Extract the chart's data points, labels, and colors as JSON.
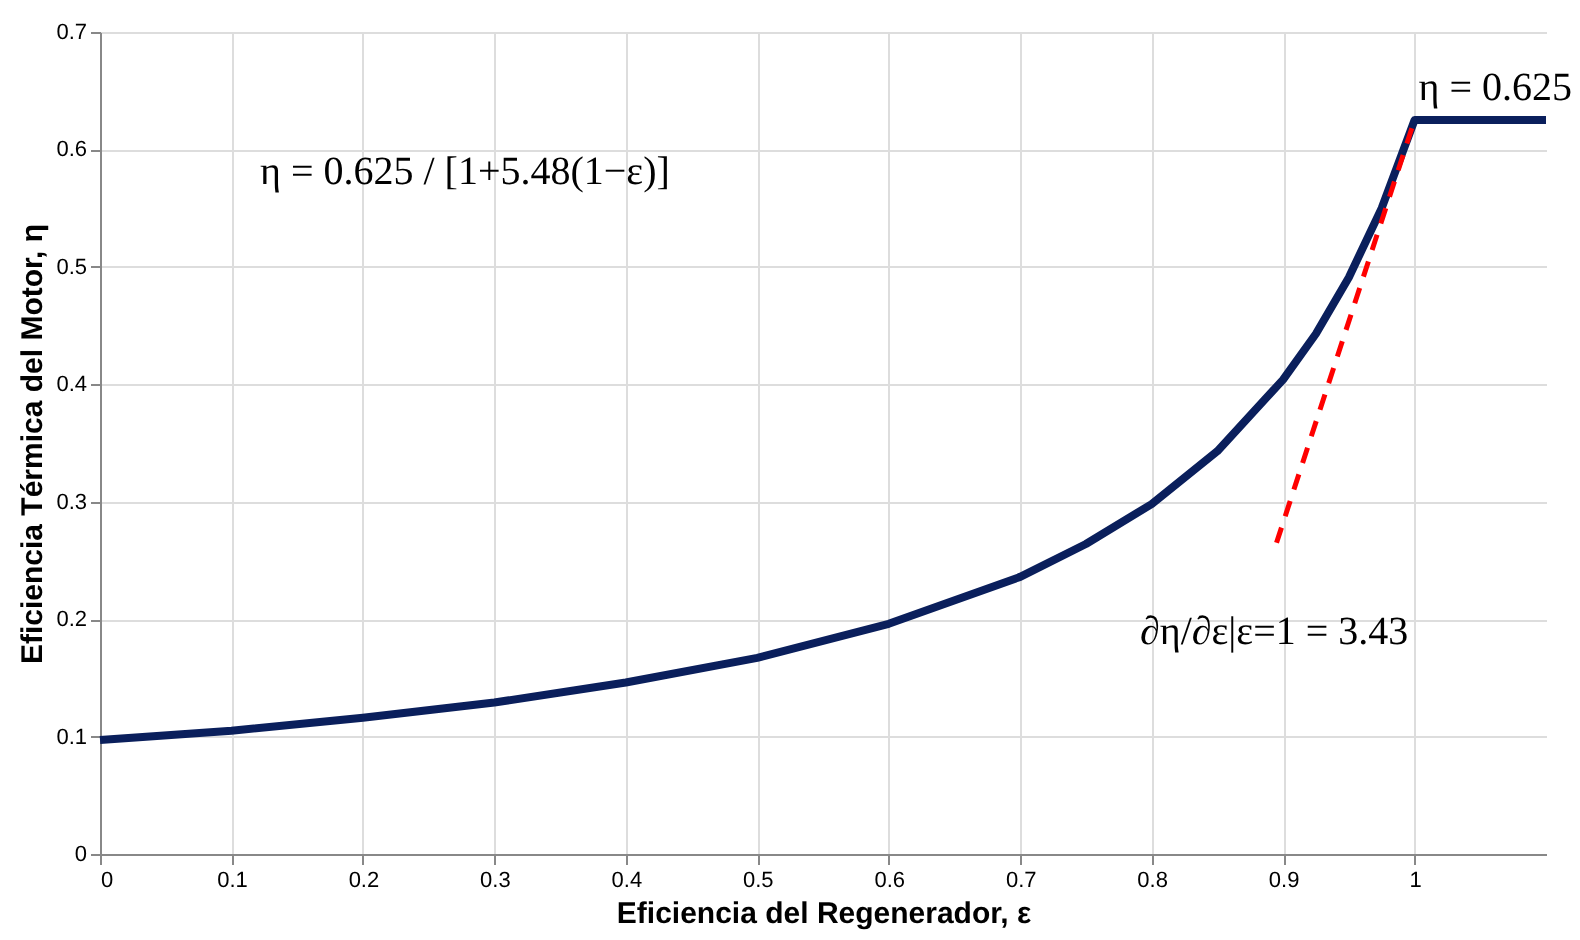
{
  "chart_data": {
    "type": "line",
    "xlabel": "Eficiencia del Regenerador, ε",
    "ylabel": "Eficiencia Térmica del Motor, η",
    "xlim": [
      0,
      1.1
    ],
    "xticks": [
      0,
      0.1,
      0.2,
      0.3,
      0.4,
      0.5,
      0.6,
      0.7,
      0.8,
      0.9,
      1
    ],
    "ylim": [
      0,
      0.7
    ],
    "yticks": [
      0,
      0.1,
      0.2,
      0.3,
      0.4,
      0.5,
      0.6,
      0.7
    ],
    "grid": true,
    "series": [
      {
        "color": "#0a1f5c",
        "line_style": "solid",
        "x": [
          0,
          0.1,
          0.2,
          0.3,
          0.4,
          0.5,
          0.6,
          0.7,
          0.75,
          0.8,
          0.85,
          0.9,
          0.925,
          0.95,
          0.975,
          1,
          1.1
        ],
        "values": [
          0.097,
          0.105,
          0.116,
          0.129,
          0.146,
          0.167,
          0.196,
          0.236,
          0.264,
          0.298,
          0.343,
          0.404,
          0.443,
          0.491,
          0.55,
          0.625,
          0.625
        ]
      },
      {
        "type": "line",
        "color": "#ff0000",
        "line_style": "dashed",
        "x": [
          0.895,
          1
        ],
        "values": [
          0.265,
          0.625
        ]
      }
    ],
    "annotations": [
      "η = 0.625 / [1+5.48(1−ε)]",
      {
        "text": "η = 0.625",
        "x": 1,
        "y": 0.625
      },
      "∂η/∂ε|ε=1 = 3.43"
    ]
  }
}
